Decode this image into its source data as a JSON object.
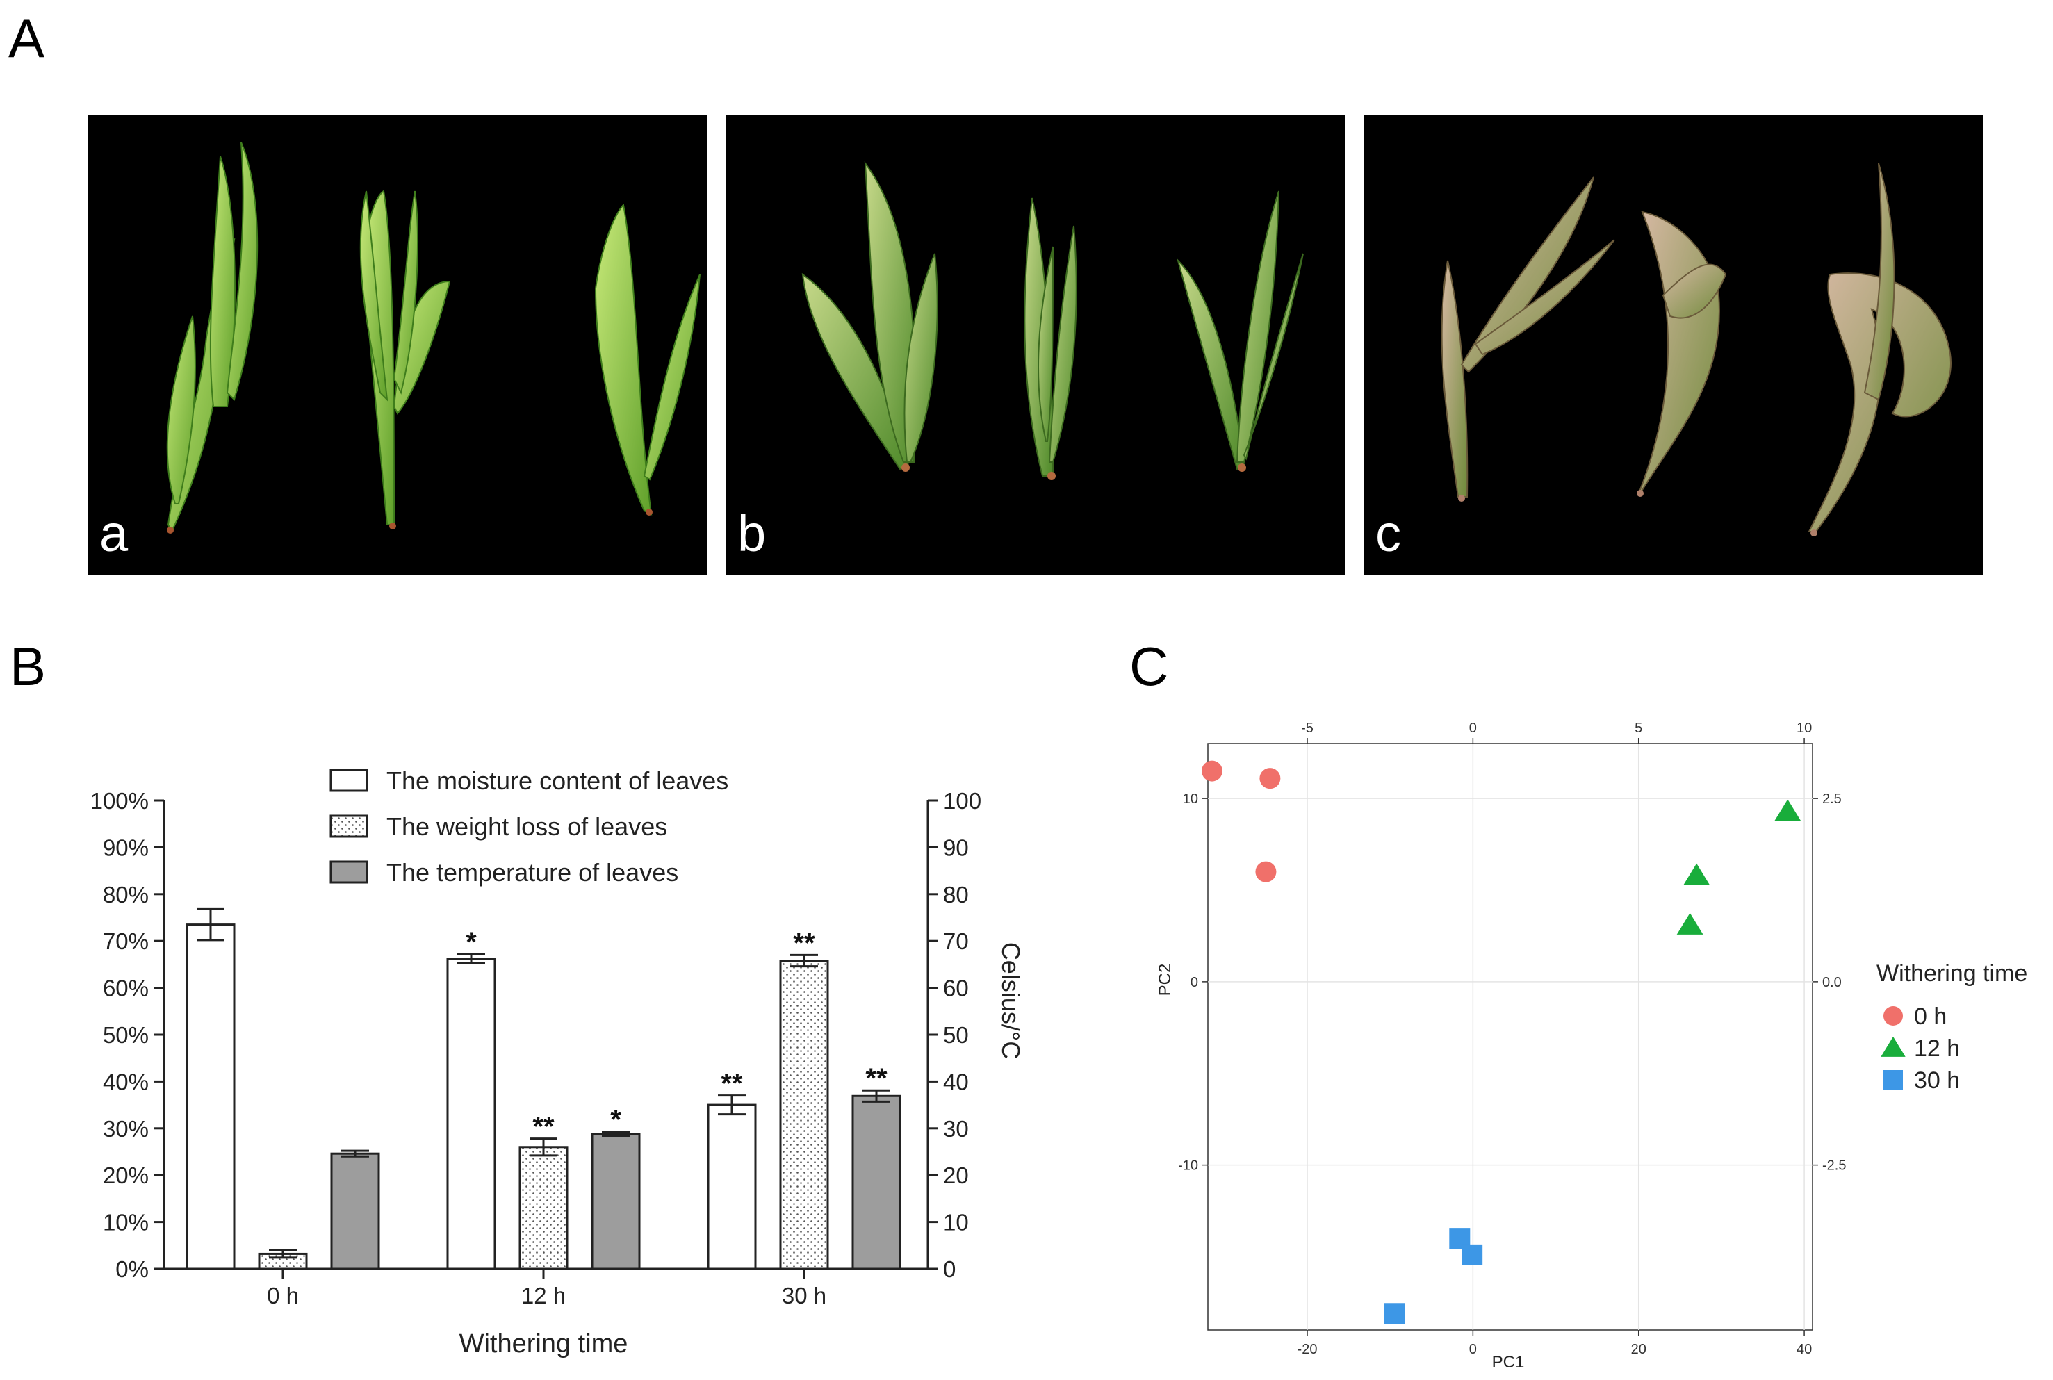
{
  "panels": {
    "A": {
      "letter": "A",
      "photos": [
        {
          "label": "a",
          "tone": "fresh"
        },
        {
          "label": "b",
          "tone": "mid"
        },
        {
          "label": "c",
          "tone": "withered"
        }
      ]
    },
    "B": {
      "letter": "B"
    },
    "C": {
      "letter": "C"
    }
  },
  "chart_data": [
    {
      "type": "bar",
      "categories": [
        "0 h",
        "12 h",
        "30 h"
      ],
      "xlabel": "Withering time",
      "ylabel_left": "",
      "ylabel_right": "Celsius/°C",
      "ylim_left": [
        0,
        100
      ],
      "ylim_right": [
        0,
        100
      ],
      "left_ticks": [
        "0%",
        "10%",
        "20%",
        "30%",
        "40%",
        "50%",
        "60%",
        "70%",
        "80%",
        "90%",
        "100%"
      ],
      "right_ticks": [
        "0",
        "10",
        "20",
        "30",
        "40",
        "50",
        "60",
        "70",
        "80",
        "90",
        "100"
      ],
      "series": [
        {
          "name": "The moisture content of leaves",
          "pattern": "white",
          "values": [
            73.5,
            66.2,
            35.0
          ],
          "errors": [
            3.3,
            1.0,
            2.0
          ],
          "marks": [
            "",
            "*",
            "**"
          ]
        },
        {
          "name": "The weight loss of leaves",
          "pattern": "dots",
          "values": [
            3.2,
            26.0,
            65.8
          ],
          "errors": [
            0.8,
            1.8,
            1.2
          ],
          "marks": [
            "",
            "**",
            "**"
          ]
        },
        {
          "name": "The temperature of leaves",
          "pattern": "gray",
          "values": [
            24.6,
            28.8,
            36.9
          ],
          "errors": [
            0.6,
            0.5,
            1.2
          ],
          "marks": [
            "",
            "*",
            "**"
          ]
        }
      ]
    },
    {
      "type": "scatter",
      "xlabel": "PC1",
      "ylabel": "PC2",
      "xlim": [
        -32,
        41
      ],
      "ylim": [
        -19,
        13
      ],
      "x_ticks": [
        -20,
        0,
        20,
        40
      ],
      "y_ticks": [
        -10,
        0,
        10
      ],
      "x2_ticks": [
        "-5",
        "0",
        "5",
        "10"
      ],
      "x2_values": [
        -20,
        0,
        20,
        40
      ],
      "y2_ticks": [
        "2.5",
        "0.0",
        "-2.5"
      ],
      "y2_values": [
        10,
        0,
        -10
      ],
      "legend_title": "Withering time",
      "series": [
        {
          "name": "0 h",
          "marker": "circle",
          "color": "#f0706a",
          "points": [
            [
              -31.5,
              11.5
            ],
            [
              -24.5,
              11.1
            ],
            [
              -25.0,
              6.0
            ]
          ]
        },
        {
          "name": "12 h",
          "marker": "triangle",
          "color": "#19ad3b",
          "points": [
            [
              38.0,
              9.3
            ],
            [
              27.0,
              5.8
            ],
            [
              26.2,
              3.1
            ]
          ]
        },
        {
          "name": "30 h",
          "marker": "square",
          "color": "#3d97e6",
          "points": [
            [
              -1.6,
              -14.0
            ],
            [
              -0.1,
              -14.9
            ],
            [
              -9.5,
              -18.1
            ]
          ]
        }
      ]
    }
  ]
}
